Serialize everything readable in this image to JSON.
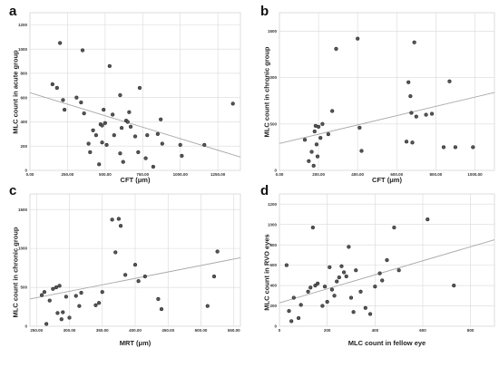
{
  "chart_data": [
    {
      "panel": "a",
      "type": "scatter",
      "xlabel": "CFT (μm)",
      "ylabel": "MLC count in acute group",
      "xlim": [
        0,
        1400
      ],
      "ylim": [
        0,
        1300
      ],
      "xticks": [
        0,
        250,
        500,
        750,
        1000,
        1250
      ],
      "xtick_labels": [
        "0.00",
        "250.00",
        "500.00",
        "750.00",
        "1000.00",
        "1250.00"
      ],
      "yticks": [
        0,
        200,
        400,
        600,
        800,
        1000,
        1200
      ],
      "ytick_labels": [
        "0",
        "200",
        "400",
        "600",
        "800",
        "1000",
        "1200"
      ],
      "fit_line": {
        "x": [
          0,
          1400
        ],
        "y": [
          640,
          110
        ]
      },
      "points": {
        "x": [
          150,
          180,
          200,
          220,
          230,
          310,
          340,
          350,
          360,
          390,
          400,
          420,
          440,
          460,
          470,
          480,
          480,
          490,
          500,
          510,
          530,
          550,
          560,
          600,
          600,
          610,
          620,
          640,
          650,
          660,
          670,
          700,
          720,
          730,
          770,
          780,
          820,
          850,
          870,
          880,
          1000,
          1010,
          1160,
          1350
        ],
        "y": [
          710,
          680,
          1050,
          580,
          500,
          600,
          560,
          990,
          470,
          220,
          150,
          330,
          290,
          50,
          380,
          370,
          230,
          500,
          390,
          210,
          860,
          460,
          290,
          140,
          620,
          350,
          70,
          410,
          400,
          480,
          360,
          280,
          150,
          680,
          100,
          290,
          30,
          300,
          420,
          220,
          210,
          120,
          210,
          550
        ]
      }
    },
    {
      "panel": "b",
      "type": "scatter",
      "xlabel": "CFT (μm)",
      "ylabel": "MLC count in chronic group",
      "xlim": [
        0,
        1100
      ],
      "ylim": [
        0,
        1700
      ],
      "xticks": [
        0,
        200,
        400,
        600,
        800,
        1000
      ],
      "xtick_labels": [
        "0.00",
        "200.00",
        "400.00",
        "600.00",
        "800.00",
        "1000.00"
      ],
      "yticks": [
        0,
        500,
        1000,
        1500
      ],
      "ytick_labels": [
        "0",
        "500",
        "1000",
        "1500"
      ],
      "fit_line": {
        "x": [
          0,
          1100
        ],
        "y": [
          290,
          840
        ]
      },
      "points": {
        "x": [
          130,
          150,
          165,
          175,
          180,
          185,
          190,
          195,
          200,
          210,
          220,
          250,
          270,
          290,
          400,
          410,
          420,
          650,
          660,
          670,
          675,
          680,
          690,
          700,
          750,
          780,
          840,
          870,
          900,
          990
        ],
        "y": [
          330,
          100,
          200,
          50,
          420,
          480,
          280,
          150,
          470,
          350,
          500,
          390,
          640,
          1310,
          1420,
          460,
          210,
          310,
          950,
          800,
          620,
          300,
          1380,
          580,
          600,
          610,
          250,
          960,
          250,
          250
        ]
      }
    },
    {
      "panel": "c",
      "type": "scatter",
      "xlabel": "MRT (μm)",
      "ylabel": "MLC count in chronic group",
      "xlim": [
        240,
        560
      ],
      "ylim": [
        0,
        1700
      ],
      "xticks": [
        250,
        300,
        350,
        400,
        450,
        500,
        550
      ],
      "xtick_labels": [
        "250.00",
        "300.00",
        "350.00",
        "400.00",
        "450.00",
        "500.00",
        "550.00"
      ],
      "yticks": [
        0,
        500,
        1000,
        1500
      ],
      "ytick_labels": [
        "0",
        "500",
        "1000",
        "1500"
      ],
      "fit_line": {
        "x": [
          240,
          560
        ],
        "y": [
          350,
          880
        ]
      },
      "points": {
        "x": [
          258,
          262,
          265,
          270,
          275,
          280,
          282,
          285,
          288,
          290,
          295,
          300,
          310,
          315,
          318,
          340,
          345,
          350,
          365,
          370,
          375,
          378,
          385,
          400,
          405,
          415,
          435,
          440,
          510,
          520,
          525
        ],
        "y": [
          400,
          440,
          30,
          330,
          480,
          500,
          170,
          520,
          90,
          180,
          380,
          110,
          390,
          260,
          430,
          270,
          300,
          440,
          1370,
          950,
          1380,
          1290,
          660,
          790,
          580,
          640,
          350,
          220,
          260,
          640,
          960
        ]
      }
    },
    {
      "panel": "d",
      "type": "scatter",
      "xlabel": "MLC count in fellow eye",
      "ylabel": "MLC count in RVO eyes",
      "xlim": [
        0,
        900
      ],
      "ylim": [
        0,
        1300
      ],
      "xticks": [
        0,
        200,
        400,
        600,
        800
      ],
      "xtick_labels": [
        "0",
        "200",
        "400",
        "600",
        "800"
      ],
      "yticks": [
        0,
        200,
        400,
        600,
        800,
        1000,
        1200
      ],
      "ytick_labels": [
        "0",
        "200",
        "400",
        "600",
        "800",
        "1000",
        "1200"
      ],
      "fit_line": {
        "x": [
          0,
          900
        ],
        "y": [
          230,
          850
        ]
      },
      "points": {
        "x": [
          30,
          40,
          50,
          60,
          80,
          90,
          120,
          130,
          140,
          150,
          160,
          180,
          190,
          200,
          210,
          220,
          230,
          240,
          250,
          260,
          270,
          280,
          290,
          300,
          310,
          320,
          340,
          360,
          380,
          400,
          420,
          430,
          450,
          480,
          500,
          620,
          730
        ],
        "y": [
          600,
          150,
          50,
          280,
          80,
          210,
          340,
          380,
          970,
          400,
          420,
          200,
          390,
          240,
          580,
          360,
          300,
          440,
          480,
          590,
          530,
          490,
          780,
          280,
          140,
          550,
          340,
          180,
          120,
          390,
          520,
          450,
          650,
          970,
          550,
          1050,
          400
        ]
      }
    }
  ]
}
